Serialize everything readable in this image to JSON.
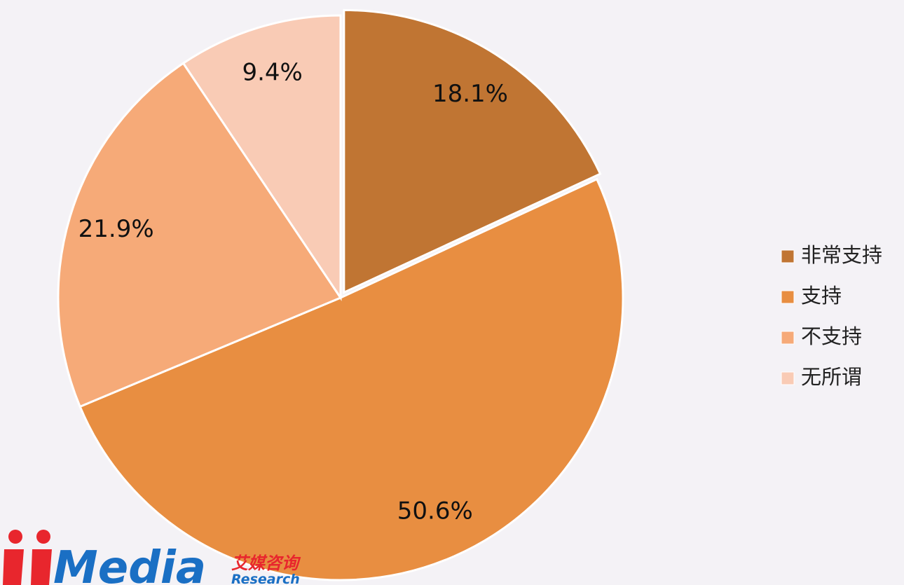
{
  "chart_data": {
    "type": "pie",
    "categories": [
      "非常支持",
      "支持",
      "不支持",
      "无所谓"
    ],
    "values": [
      18.1,
      50.6,
      21.9,
      9.4
    ],
    "value_labels": [
      "18.1%",
      "50.6%",
      "21.9%",
      "9.4%"
    ],
    "colors": [
      "#c07533",
      "#e88e41",
      "#f6aa78",
      "#f9cbb5"
    ],
    "legend": "right"
  },
  "logo": {
    "brand": "Media",
    "cn": "艾媒咨询",
    "en": "Research"
  }
}
